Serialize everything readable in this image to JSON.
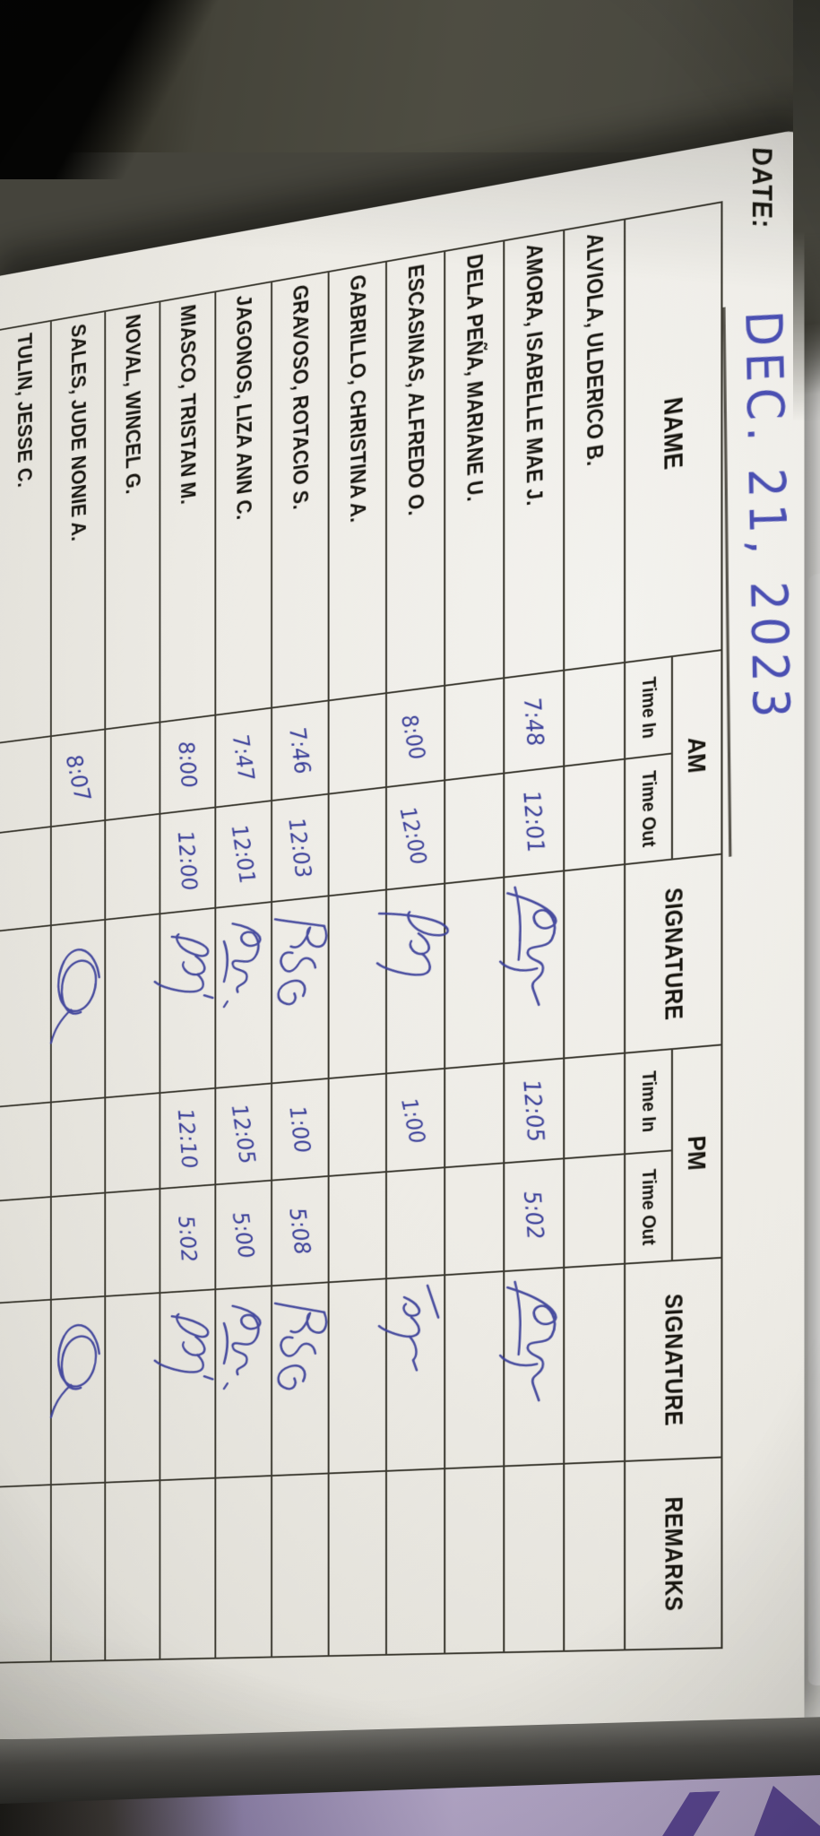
{
  "sheet": {
    "date_label": "DATE:",
    "date_value": "DEC. 21, 2023",
    "headers": {
      "name": "NAME",
      "am": "AM",
      "pm": "PM",
      "time_in": "Time In",
      "time_out": "Time Out",
      "signature": "SIGNATURE",
      "remarks": "REMARKS"
    },
    "rows": [
      {
        "name": "ALVIOLA, ULDERICO B.",
        "am_in": "",
        "am_out": "",
        "am_sig": "",
        "pm_in": "",
        "pm_out": "",
        "pm_sig": "",
        "remarks": ""
      },
      {
        "name": "AMORA, ISABELLE MAE J.",
        "am_in": "7:48",
        "am_out": "12:01",
        "am_sig": "flourish",
        "pm_in": "12:05",
        "pm_out": "5:02",
        "pm_sig": "flourish",
        "remarks": ""
      },
      {
        "name": "DELA PEÑA, MARIANE U.",
        "am_in": "",
        "am_out": "",
        "am_sig": "",
        "pm_in": "",
        "pm_out": "",
        "pm_sig": "",
        "remarks": ""
      },
      {
        "name": "ESCASINAS, ALFREDO O.",
        "am_in": "8:00",
        "am_out": "12:00",
        "am_sig": "tall",
        "pm_in": "1:00",
        "pm_out": "",
        "pm_sig": "wave",
        "remarks": ""
      },
      {
        "name": "GABRILLO, CHRISTINA A.",
        "am_in": "",
        "am_out": "",
        "am_sig": "",
        "pm_in": "",
        "pm_out": "",
        "pm_sig": "",
        "remarks": ""
      },
      {
        "name": "GRAVOSO, ROTACIO S.",
        "am_in": "7:46",
        "am_out": "12:03",
        "am_sig": "rsg",
        "pm_in": "1:00",
        "pm_out": "5:08",
        "pm_sig": "rsg",
        "remarks": ""
      },
      {
        "name": "JAGONOS, LIZA ANN C.",
        "am_in": "7:47",
        "am_out": "12:01",
        "am_sig": "scribble",
        "pm_in": "12:05",
        "pm_out": "5:00",
        "pm_sig": "scribble",
        "remarks": ""
      },
      {
        "name": "MIASCO, TRISTAN M.",
        "am_in": "8:00",
        "am_out": "12:00",
        "am_sig": "jd",
        "pm_in": "12:10",
        "pm_out": "5:02",
        "pm_sig": "jd",
        "remarks": ""
      },
      {
        "name": "NOVAL, WINCEL G.",
        "am_in": "",
        "am_out": "",
        "am_sig": "",
        "pm_in": "",
        "pm_out": "",
        "pm_sig": "",
        "remarks": ""
      },
      {
        "name": "SALES, JUDE NONIE A.",
        "am_in": "8:07",
        "am_out": "",
        "am_sig": "oval",
        "pm_in": "",
        "pm_out": "",
        "pm_sig": "oval",
        "remarks": ""
      },
      {
        "name": "TULIN, JESSE C.",
        "am_in": "",
        "am_out": "",
        "am_sig": "",
        "pm_in": "",
        "pm_out": "",
        "pm_sig": "",
        "remarks": ""
      }
    ]
  },
  "colors": {
    "ink": "#3a3f99",
    "ink_date": "#4a4fb2",
    "paper": "#edebe5",
    "table_line": "#3a382f",
    "desk_surface": "#4b4a40",
    "desk_shadow": "#0a0a09",
    "book_cover": "#b2a5c6",
    "book_cover_letter": "#5a4691"
  }
}
